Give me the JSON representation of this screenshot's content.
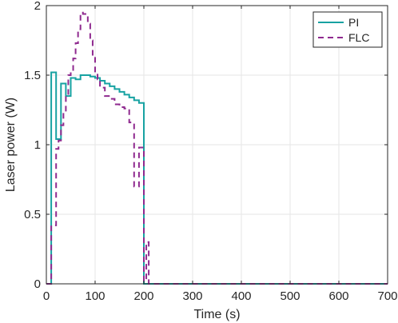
{
  "chart_data": {
    "type": "line",
    "title": "",
    "xlabel": "Time (s)",
    "ylabel": "Laser power (W)",
    "xlim": [
      0,
      700
    ],
    "ylim": [
      0,
      2
    ],
    "xticks": [
      0,
      100,
      200,
      300,
      400,
      500,
      600,
      700
    ],
    "xtick_labels": [
      "0",
      "100",
      "200",
      "300",
      "400",
      "500",
      "600",
      "700"
    ],
    "yticks": [
      0,
      0.5,
      1,
      1.5,
      2
    ],
    "ytick_labels": [
      "0",
      "0.5",
      "1",
      "1.5",
      "2"
    ],
    "grid": true,
    "legend": "top-right",
    "series": [
      {
        "name": "PI",
        "color": "#17a2a2",
        "dash": "solid",
        "step": true,
        "x": [
          0,
          10,
          20,
          30,
          40,
          50,
          60,
          70,
          80,
          90,
          100,
          110,
          120,
          130,
          140,
          150,
          160,
          170,
          180,
          190,
          200,
          210,
          700
        ],
        "y": [
          0,
          1.52,
          1.04,
          1.44,
          1.35,
          1.48,
          1.47,
          1.5,
          1.5,
          1.49,
          1.48,
          1.46,
          1.44,
          1.42,
          1.4,
          1.38,
          1.36,
          1.34,
          1.32,
          1.3,
          0,
          0,
          0
        ]
      },
      {
        "name": "FLC",
        "color": "#8f2a8f",
        "dash": "dashed",
        "step": true,
        "x": [
          0,
          10,
          20,
          25,
          30,
          35,
          40,
          45,
          50,
          55,
          60,
          65,
          70,
          75,
          80,
          85,
          90,
          95,
          100,
          105,
          110,
          120,
          130,
          140,
          150,
          160,
          170,
          180,
          190,
          200,
          205,
          210,
          700
        ],
        "y": [
          0,
          0.42,
          0.97,
          1.03,
          1.14,
          1.23,
          1.35,
          1.5,
          1.53,
          1.62,
          1.73,
          1.83,
          1.95,
          1.94,
          1.94,
          1.87,
          1.75,
          1.63,
          1.52,
          1.47,
          1.41,
          1.35,
          1.33,
          1.29,
          1.27,
          1.26,
          1.16,
          0.7,
          0.98,
          0.02,
          0.3,
          0,
          0
        ]
      }
    ]
  }
}
